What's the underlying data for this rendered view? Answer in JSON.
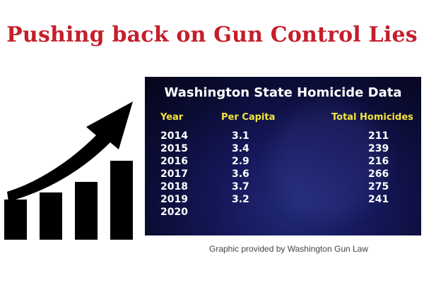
{
  "headline": "Pushing back on Gun Control Lies",
  "graphic": {
    "icon": "growth-chart-arrow-icon",
    "color": "#000000"
  },
  "table": {
    "title": "Washington State Homicide Data",
    "headers": {
      "year": "Year",
      "per_capita": "Per Capita",
      "total": "Total Homicides"
    },
    "header_color": "#f5e63a",
    "rows": [
      {
        "year": "2014",
        "per_capita": "3.1",
        "total": "211"
      },
      {
        "year": "2015",
        "per_capita": "3.4",
        "total": "239"
      },
      {
        "year": "2016",
        "per_capita": "2.9",
        "total": "216"
      },
      {
        "year": "2017",
        "per_capita": "3.6",
        "total": "266"
      },
      {
        "year": "2018",
        "per_capita": "3.7",
        "total": "275"
      },
      {
        "year": "2019",
        "per_capita": "3.2",
        "total": "241"
      },
      {
        "year": "2020",
        "per_capita": "",
        "total": ""
      }
    ]
  },
  "credit": "Graphic provided by Washington Gun Law"
}
